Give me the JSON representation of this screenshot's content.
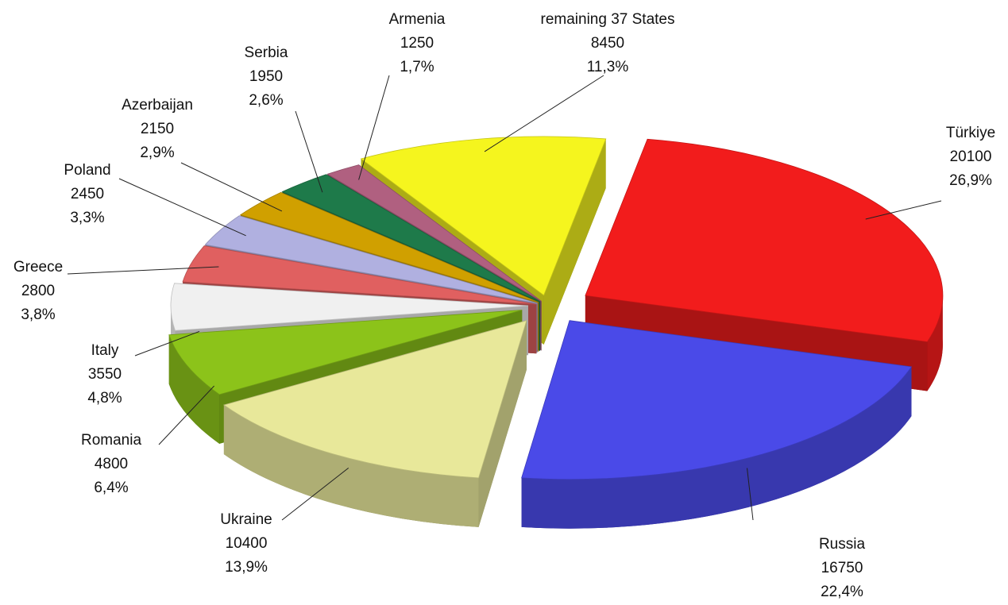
{
  "chart_data": {
    "type": "pie",
    "categories": [
      "Türkiye",
      "Russia",
      "Ukraine",
      "Romania",
      "Italy",
      "Greece",
      "Poland",
      "Azerbaijan",
      "Serbia",
      "Armenia",
      "remaining 37 States"
    ],
    "values": [
      20100,
      16750,
      10400,
      4800,
      3550,
      2800,
      2450,
      2150,
      1950,
      1250,
      8450
    ],
    "percent_labels": [
      "26,9%",
      "22,4%",
      "13,9%",
      "6,4%",
      "4,8%",
      "3,8%",
      "3,3%",
      "2,9%",
      "2,6%",
      "1,7%",
      "11,3%"
    ],
    "colors": [
      "#f21c1c",
      "#4a4ae8",
      "#e8e89a",
      "#8cc31a",
      "#f0f0f0",
      "#e06060",
      "#b0b0e0",
      "#d0a000",
      "#1e7a4a",
      "#b06080",
      "#f5f51e"
    ]
  }
}
